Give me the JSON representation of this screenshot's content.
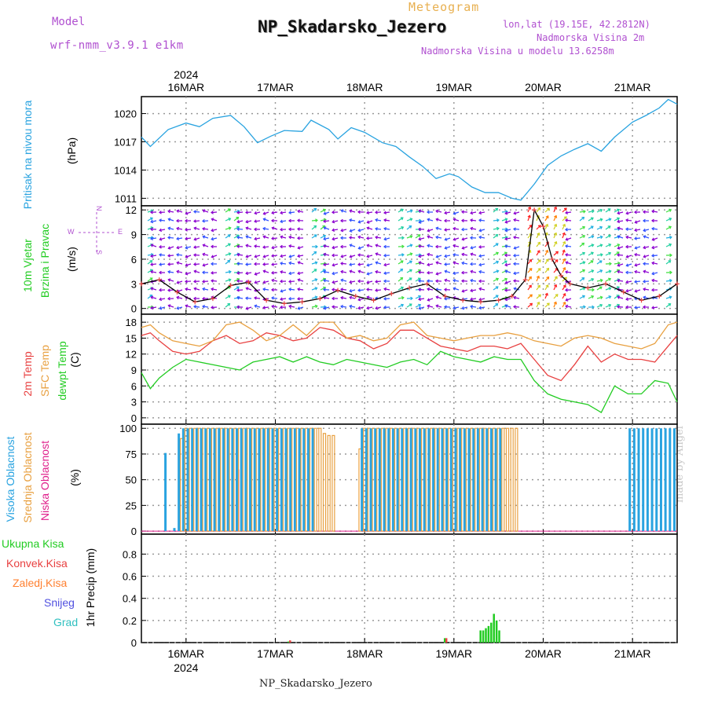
{
  "header": {
    "model_label": "Model",
    "model_value": "wrf-nmm_v3.9.1 e1km",
    "meteogram_label": "Meteogram",
    "station_title": "NP_Skadarsko_Jezero",
    "lonlat": "lon,lat (19.15E, 42.2812N)",
    "elevation_2m": "Nadmorska Visina 2m",
    "model_elevation": "Nadmorska Visina u modelu 13.6258m"
  },
  "footer": {
    "station": "NP_Skadarsko_Jezero"
  },
  "watermark": "made by Angel",
  "colors": {
    "pressure": "#29a3e0",
    "temp2m": "#e84040",
    "sfc_temp": "#e8a040",
    "dewpoint": "#22cc22",
    "high_cloud": "#29a3e0",
    "mid_cloud": "#e8a040",
    "low_cloud": "#e0208c",
    "total_precip": "#22cc22",
    "conv_precip": "#e84040",
    "frozen_precip": "#ff8030",
    "snow": "#5050e0",
    "graupel": "#30c0c0",
    "wind_label": "#22cc22",
    "wind_dir_label": "#b050d0"
  },
  "time_axis": {
    "year_label": "2024",
    "day_labels": [
      "16MAR",
      "17MAR",
      "18MAR",
      "19MAR",
      "20MAR",
      "21MAR"
    ]
  },
  "chart_data": [
    {
      "type": "line",
      "panel": "pressure",
      "ylabel": "Pritisak na nivou mora",
      "unit": "(hPa)",
      "yticks": [
        1011,
        1014,
        1017,
        1020
      ],
      "ylim": [
        1010.2,
        1021.8
      ],
      "xlim_days": [
        15.5,
        21.5
      ],
      "x": [
        15.5,
        15.6,
        15.8,
        16.0,
        16.15,
        16.3,
        16.5,
        16.65,
        16.8,
        16.95,
        17.1,
        17.3,
        17.4,
        17.6,
        17.7,
        17.85,
        18.0,
        18.2,
        18.35,
        18.5,
        18.65,
        18.8,
        18.95,
        19.05,
        19.2,
        19.35,
        19.5,
        19.65,
        19.75,
        19.9,
        20.05,
        20.2,
        20.35,
        20.5,
        20.65,
        20.8,
        21.0,
        21.15,
        21.3,
        21.4,
        21.5
      ],
      "series": [
        {
          "name": "",
          "values": [
            1017.5,
            1016.5,
            1018.3,
            1019.0,
            1018.6,
            1019.5,
            1019.8,
            1018.6,
            1016.9,
            1017.6,
            1018.2,
            1018.1,
            1019.3,
            1018.3,
            1017.3,
            1018.5,
            1018.0,
            1016.9,
            1016.5,
            1015.4,
            1014.4,
            1013.1,
            1013.6,
            1013.3,
            1012.2,
            1011.6,
            1011.6,
            1011.0,
            1010.8,
            1012.5,
            1014.5,
            1015.5,
            1016.2,
            1016.8,
            1016.0,
            1017.5,
            1019.1,
            1019.8,
            1020.6,
            1021.5,
            1021.0
          ]
        }
      ]
    },
    {
      "type": "line",
      "panel": "wind",
      "ylabel": "10m Vjetar Brzina i Pravac",
      "unit": "(m/s)",
      "direction_legend": [
        "N",
        "S",
        "W",
        "E"
      ],
      "yticks": [
        0,
        3,
        6,
        9,
        12
      ],
      "ylim": [
        -0.7,
        12.5
      ],
      "x": [
        15.5,
        15.7,
        15.9,
        16.1,
        16.3,
        16.5,
        16.7,
        16.9,
        17.1,
        17.3,
        17.5,
        17.7,
        17.9,
        18.1,
        18.3,
        18.5,
        18.7,
        18.9,
        19.1,
        19.3,
        19.5,
        19.65,
        19.8,
        19.9,
        20.0,
        20.1,
        20.2,
        20.3,
        20.5,
        20.7,
        20.9,
        21.1,
        21.3,
        21.5
      ],
      "series": [
        {
          "name": "",
          "values": [
            3.0,
            3.5,
            2.0,
            0.8,
            1.2,
            2.8,
            3.2,
            1.0,
            0.6,
            0.8,
            1.2,
            2.2,
            1.5,
            1.0,
            1.8,
            2.5,
            3.0,
            1.5,
            1.0,
            0.8,
            1.0,
            1.5,
            3.5,
            12.0,
            10.0,
            6.0,
            4.0,
            3.0,
            2.5,
            3.0,
            2.0,
            1.0,
            1.5,
            3.0
          ]
        }
      ]
    },
    {
      "type": "line",
      "panel": "temperature",
      "ylabel": "2m Temp SFC Temp dewpt Temp",
      "unit": "(C)",
      "yticks": [
        0,
        3,
        6,
        9,
        12,
        15,
        18
      ],
      "ylim": [
        -1.2,
        19.5
      ],
      "x": [
        15.5,
        15.6,
        15.7,
        15.85,
        16.0,
        16.15,
        16.3,
        16.45,
        16.6,
        16.75,
        16.9,
        17.05,
        17.2,
        17.35,
        17.5,
        17.65,
        17.8,
        17.95,
        18.1,
        18.25,
        18.4,
        18.55,
        18.7,
        18.85,
        19.0,
        19.15,
        19.3,
        19.45,
        19.6,
        19.75,
        19.9,
        20.05,
        20.2,
        20.35,
        20.5,
        20.65,
        20.8,
        20.95,
        21.1,
        21.25,
        21.4,
        21.5
      ],
      "series": [
        {
          "name": "",
          "values": [
            15.5,
            16.0,
            14.5,
            12.5,
            12.0,
            12.5,
            14.5,
            15.5,
            14.0,
            14.5,
            16.0,
            15.5,
            14.5,
            15.0,
            17.0,
            16.5,
            15.0,
            14.5,
            13.0,
            14.0,
            16.5,
            16.5,
            15.0,
            13.5,
            13.0,
            12.5,
            13.5,
            13.5,
            13.0,
            14.0,
            11.0,
            8.0,
            7.0,
            10.0,
            13.5,
            10.5,
            12.0,
            11.0,
            11.0,
            10.5,
            13.5,
            15.5
          ]
        },
        {
          "name": "",
          "values": [
            17.0,
            17.5,
            16.0,
            14.5,
            14.0,
            13.5,
            14.5,
            17.5,
            18.0,
            16.5,
            14.5,
            15.5,
            17.5,
            15.5,
            18.0,
            18.0,
            15.0,
            15.5,
            14.5,
            15.0,
            17.5,
            18.0,
            15.5,
            15.0,
            14.5,
            15.0,
            15.5,
            15.5,
            16.0,
            15.5,
            14.5,
            14.0,
            13.5,
            15.0,
            15.5,
            15.0,
            14.0,
            13.5,
            13.0,
            14.0,
            17.5,
            18.0
          ]
        },
        {
          "name": "",
          "values": [
            8.5,
            5.5,
            7.5,
            9.5,
            11.0,
            10.5,
            10.0,
            9.5,
            9.0,
            10.5,
            11.0,
            11.5,
            10.5,
            11.5,
            10.5,
            10.0,
            11.0,
            10.5,
            10.0,
            9.5,
            10.5,
            11.0,
            10.0,
            12.5,
            11.5,
            11.0,
            10.5,
            11.5,
            11.0,
            11.0,
            7.0,
            4.5,
            3.5,
            3.0,
            2.5,
            1.0,
            6.0,
            4.5,
            4.5,
            7.0,
            6.5,
            3.0
          ]
        }
      ]
    },
    {
      "type": "bar",
      "panel": "cloud_cover",
      "ylabel": "Visoka Oblacnost Srednja Oblacnost Niska Oblacnost",
      "unit": "(%)",
      "yticks": [
        0,
        25,
        50,
        75,
        100
      ],
      "ylim": [
        -3,
        104
      ],
      "x": [
        15.8,
        15.9,
        15.95,
        16.0,
        16.05,
        16.1,
        16.15,
        16.2,
        16.25,
        16.3,
        16.35,
        16.4,
        16.45,
        16.5,
        16.55,
        16.6,
        16.65,
        16.7,
        16.75,
        16.8,
        16.85,
        16.9,
        16.95,
        17.0,
        17.05,
        17.1,
        17.15,
        17.2,
        17.25,
        17.3,
        17.35,
        17.4,
        17.45,
        17.5,
        17.55,
        17.6,
        17.65,
        17.7,
        17.95,
        18.0,
        18.05,
        18.1,
        18.15,
        18.2,
        18.25,
        18.3,
        18.35,
        18.4,
        18.45,
        18.5,
        18.55,
        18.6,
        18.65,
        18.7,
        18.75,
        18.8,
        18.85,
        18.9,
        18.95,
        19.0,
        19.05,
        19.1,
        19.15,
        19.2,
        19.25,
        19.3,
        19.35,
        19.4,
        19.45,
        19.5,
        19.55,
        19.6,
        19.65,
        19.7,
        21.0,
        21.05,
        21.1,
        21.15,
        21.2,
        21.25,
        21.3,
        21.35,
        21.4,
        21.45,
        21.5
      ],
      "series": [
        {
          "name": "",
          "values": [
            76,
            3,
            95,
            100,
            100,
            100,
            100,
            100,
            100,
            100,
            100,
            100,
            100,
            100,
            100,
            100,
            100,
            100,
            100,
            100,
            100,
            100,
            100,
            100,
            100,
            100,
            100,
            100,
            100,
            100,
            100,
            100,
            100,
            0,
            0,
            0,
            0,
            0,
            0,
            100,
            100,
            100,
            100,
            100,
            100,
            100,
            100,
            100,
            100,
            100,
            100,
            100,
            100,
            100,
            100,
            100,
            100,
            100,
            100,
            100,
            100,
            100,
            100,
            100,
            100,
            100,
            100,
            100,
            100,
            100,
            100,
            0,
            0,
            0,
            100,
            100,
            100,
            100,
            100,
            100,
            100,
            100,
            100,
            100,
            100
          ]
        },
        {
          "name": "",
          "values": [
            0,
            0,
            90,
            100,
            100,
            100,
            100,
            100,
            100,
            100,
            100,
            100,
            100,
            100,
            100,
            100,
            100,
            100,
            100,
            100,
            100,
            100,
            100,
            100,
            100,
            100,
            100,
            100,
            100,
            100,
            100,
            100,
            100,
            100,
            95,
            93,
            93,
            0,
            80,
            100,
            100,
            100,
            100,
            100,
            100,
            100,
            100,
            100,
            100,
            100,
            100,
            100,
            100,
            100,
            100,
            100,
            100,
            100,
            100,
            100,
            100,
            100,
            100,
            100,
            100,
            100,
            100,
            100,
            100,
            100,
            100,
            100,
            100,
            100,
            0,
            0,
            0,
            0,
            0,
            0,
            0,
            0,
            0,
            0,
            0
          ]
        },
        {
          "name": "",
          "values": [
            0,
            0,
            0,
            0,
            0,
            0,
            0,
            0,
            0,
            0,
            0,
            0,
            0,
            0,
            60,
            0,
            0,
            0,
            0,
            0,
            0,
            0,
            0,
            0,
            0,
            0,
            0,
            0,
            0,
            0,
            0,
            0,
            0,
            0,
            0,
            0,
            0,
            0,
            0,
            0,
            0,
            0,
            0,
            0,
            0,
            0,
            0,
            0,
            0,
            0,
            0,
            0,
            0,
            0,
            0,
            0,
            0,
            0,
            0,
            0,
            0,
            0,
            0,
            0,
            0,
            0,
            0,
            0,
            0,
            0,
            0,
            0,
            0,
            0,
            0,
            0,
            0,
            0,
            0,
            0,
            0,
            0,
            0,
            0,
            0
          ]
        }
      ]
    },
    {
      "type": "bar",
      "panel": "precipitation",
      "ylabel": "1hr Precip (mm)",
      "legend": [
        "Ukupna Kisa",
        "Konvek.Kisa",
        "Zaledj.Kisa",
        "Snijeg",
        "Grad"
      ],
      "yticks": [
        0,
        0.2,
        0.4,
        0.6,
        0.8
      ],
      "ylim": [
        0,
        0.98
      ],
      "x": [
        17.15,
        18.9,
        19.3,
        19.33,
        19.36,
        19.39,
        19.42,
        19.45,
        19.48,
        19.51
      ],
      "series": [
        {
          "name": "Ukupna Kisa",
          "values": [
            0.01,
            0.04,
            0.11,
            0.11,
            0.13,
            0.15,
            0.18,
            0.26,
            0.2,
            0.11
          ]
        },
        {
          "name": "Konvek.Kisa",
          "values": [
            0.02,
            0.04,
            0,
            0,
            0,
            0,
            0,
            0,
            0,
            0
          ]
        }
      ]
    }
  ]
}
